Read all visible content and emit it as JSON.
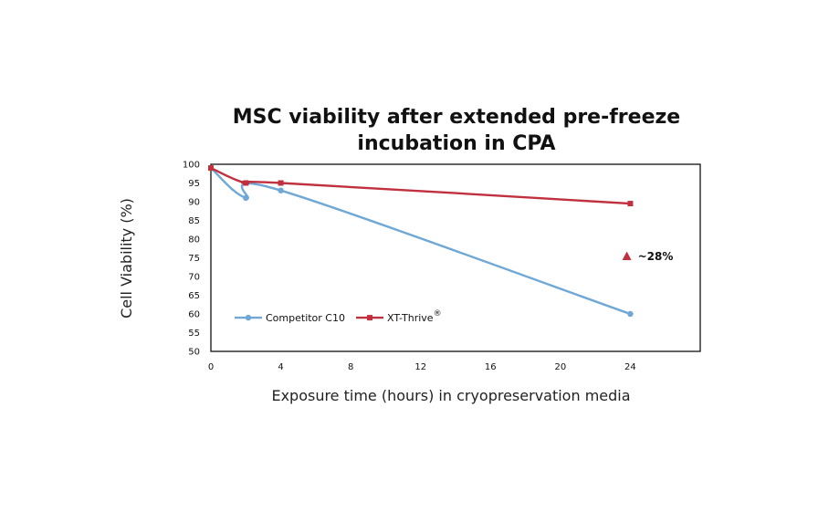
{
  "chart_data": {
    "type": "line",
    "title_line1": "MSC viability after extended pre-freeze",
    "title_line2": "incubation in CPA",
    "xlabel": "Exposure time (hours) in cryopreservation media",
    "ylabel": "Cell Viability (%)",
    "xlim": [
      0,
      28
    ],
    "ylim": [
      50,
      100
    ],
    "xticks": [
      0,
      4,
      8,
      12,
      16,
      20,
      24
    ],
    "yticks": [
      50,
      55,
      60,
      65,
      70,
      75,
      80,
      85,
      90,
      95,
      100
    ],
    "grid": false,
    "legend_position": "bottom-left",
    "series": [
      {
        "name": "Competitor C10",
        "color": "#6fa8d6",
        "marker": "circle",
        "x": [
          0,
          2,
          4,
          24
        ],
        "y": [
          99,
          91,
          93,
          60
        ]
      },
      {
        "name": "XT-Thrive",
        "name_superscript": "®",
        "color": "#c0303f",
        "marker": "square",
        "x": [
          0,
          2,
          4,
          24
        ],
        "y": [
          99,
          95,
          95,
          89.5
        ]
      }
    ],
    "annotation": {
      "text": "~28%",
      "icon": "up-triangle-icon",
      "color": "#c0303f",
      "x": 23.8,
      "y": 75.5
    }
  }
}
